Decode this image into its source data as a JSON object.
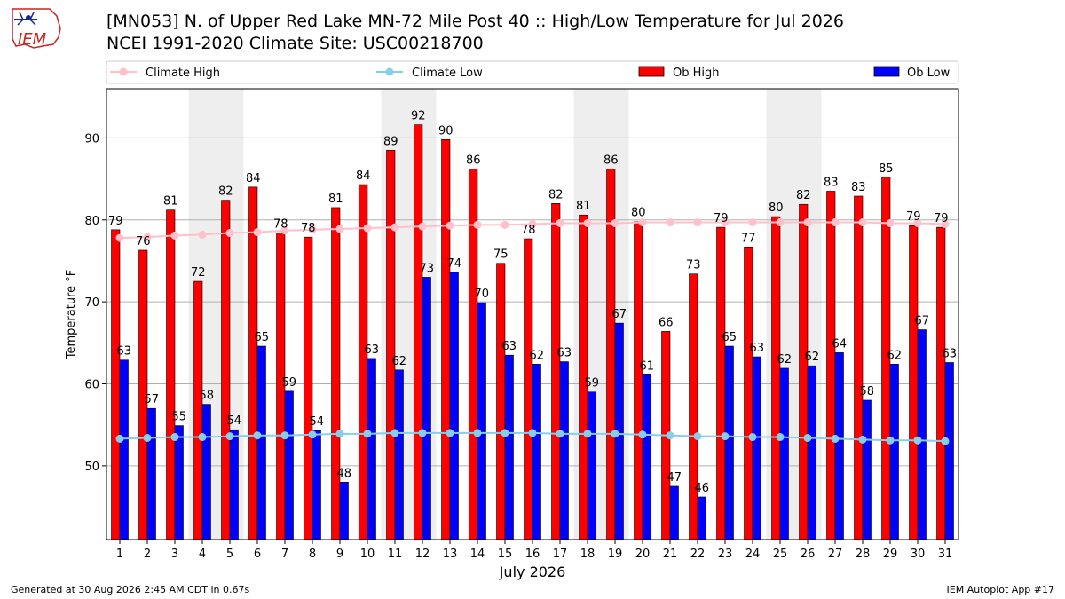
{
  "header": {
    "title_line1": "[MN053] N. of Upper Red Lake MN-72 Mile Post 40 :: High/Low Temperature for Jul 2026",
    "title_line2": "NCEI 1991-2020 Climate Site: USC00218700",
    "logo_text": "IEM"
  },
  "footer": {
    "left": "Generated at 30 Aug 2026 2:45 AM CDT in 0.67s",
    "right": "IEM Autoplot App #17"
  },
  "colors": {
    "ob_high": "#ff0000",
    "ob_low": "#0000ff",
    "climate_high": "#ffc0cb",
    "climate_low": "#87ceeb",
    "weekend_shade": "#eeeeee",
    "logo_red": "#cc2222",
    "logo_blue": "#1a2a8a"
  },
  "chart_data": {
    "type": "bar",
    "xlabel": "July 2026",
    "ylabel": "Temperature °F",
    "ylim": [
      41,
      96
    ],
    "yticks": [
      50,
      60,
      70,
      80,
      90
    ],
    "grid": true,
    "legend_position": "top",
    "shaded_day_pairs": [
      [
        4,
        5
      ],
      [
        11,
        12
      ],
      [
        18,
        19
      ],
      [
        25,
        26
      ]
    ],
    "categories": [
      "1",
      "2",
      "3",
      "4",
      "5",
      "6",
      "7",
      "8",
      "9",
      "10",
      "11",
      "12",
      "13",
      "14",
      "15",
      "16",
      "17",
      "18",
      "19",
      "20",
      "21",
      "22",
      "23",
      "24",
      "25",
      "26",
      "27",
      "28",
      "29",
      "30",
      "31"
    ],
    "series": [
      {
        "name": "Ob High",
        "kind": "bar",
        "values": [
          78.8,
          76.3,
          81.2,
          72.5,
          82.4,
          84.0,
          78.4,
          77.9,
          81.5,
          84.3,
          88.5,
          91.6,
          89.8,
          86.2,
          74.7,
          77.7,
          82.0,
          80.6,
          86.2,
          79.8,
          66.4,
          73.4,
          79.1,
          76.7,
          80.4,
          81.9,
          83.5,
          82.9,
          85.2,
          79.3,
          79.1
        ],
        "labels": [
          "79",
          "76",
          "81",
          "72",
          "82",
          "84",
          "78",
          "78",
          "81",
          "84",
          "89",
          "92",
          "90",
          "86",
          "75",
          "78",
          "82",
          "81",
          "86",
          "80",
          "66",
          "73",
          "79",
          "77",
          "80",
          "82",
          "83",
          "83",
          "85",
          "79",
          "79"
        ]
      },
      {
        "name": "Ob Low",
        "kind": "bar",
        "values": [
          62.9,
          57.0,
          54.9,
          57.5,
          54.4,
          64.6,
          59.1,
          54.3,
          48.0,
          63.1,
          61.7,
          73.0,
          73.6,
          69.9,
          63.5,
          62.4,
          62.7,
          59.0,
          67.4,
          61.1,
          47.5,
          46.2,
          64.6,
          63.3,
          61.9,
          62.2,
          63.8,
          58.0,
          62.4,
          66.6,
          62.6
        ],
        "labels": [
          "63",
          "57",
          "55",
          "58",
          "54",
          "65",
          "59",
          "54",
          "48",
          "63",
          "62",
          "73",
          "74",
          "70",
          "63",
          "62",
          "63",
          "59",
          "67",
          "61",
          "47",
          "46",
          "65",
          "63",
          "62",
          "62",
          "64",
          "58",
          "62",
          "67",
          "63"
        ]
      },
      {
        "name": "Climate High",
        "kind": "line",
        "values": [
          77.8,
          77.9,
          78.1,
          78.2,
          78.4,
          78.5,
          78.7,
          78.8,
          78.9,
          79.0,
          79.1,
          79.2,
          79.3,
          79.4,
          79.4,
          79.5,
          79.6,
          79.6,
          79.6,
          79.7,
          79.7,
          79.7,
          79.7,
          79.7,
          79.7,
          79.7,
          79.7,
          79.7,
          79.6,
          79.6,
          79.5
        ]
      },
      {
        "name": "Climate Low",
        "kind": "line",
        "values": [
          53.3,
          53.4,
          53.5,
          53.5,
          53.6,
          53.7,
          53.7,
          53.8,
          53.9,
          53.9,
          54.0,
          54.0,
          54.0,
          54.0,
          54.0,
          54.0,
          53.9,
          53.9,
          53.9,
          53.8,
          53.7,
          53.6,
          53.6,
          53.5,
          53.5,
          53.4,
          53.3,
          53.2,
          53.1,
          53.1,
          53.0
        ]
      }
    ]
  }
}
